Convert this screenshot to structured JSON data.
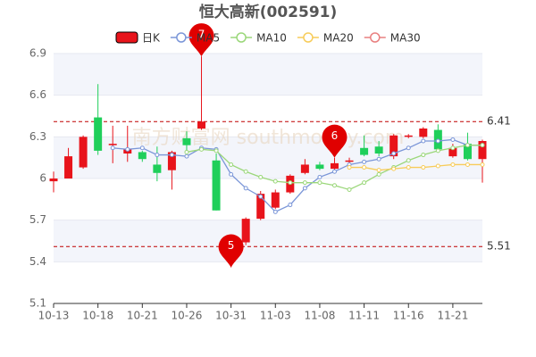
{
  "chart_data": {
    "type": "candlestick",
    "title": "恒大高新(002591)",
    "watermark": "南方财富网 southmoney.com",
    "categories": [
      "10-13",
      null,
      null,
      "10-18",
      null,
      null,
      "10-21",
      null,
      null,
      "10-26",
      null,
      null,
      "10-31",
      null,
      null,
      "11-03",
      null,
      null,
      "11-08",
      null,
      null,
      "11-11",
      null,
      null,
      "11-16",
      null,
      null,
      "11-21",
      null,
      null
    ],
    "candles": {
      "name": "日K",
      "up_color": "#e8141b",
      "down_color": "#1fcf5a",
      "open": [
        5.98,
        6.0,
        6.08,
        6.44,
        6.24,
        6.18,
        6.19,
        6.1,
        6.06,
        6.29,
        6.36,
        6.13,
        5.45,
        5.54,
        5.71,
        5.79,
        5.9,
        6.04,
        6.1,
        6.07,
        6.12,
        6.22,
        6.23,
        6.16,
        6.3,
        6.3,
        6.35,
        6.16,
        6.25,
        6.14
      ],
      "high": [
        6.05,
        6.22,
        6.31,
        6.68,
        6.38,
        6.38,
        6.2,
        6.23,
        6.2,
        6.34,
        6.88,
        6.18,
        5.57,
        5.72,
        5.91,
        5.92,
        6.03,
        6.14,
        6.12,
        6.15,
        6.15,
        6.31,
        6.27,
        6.32,
        6.32,
        6.37,
        6.39,
        6.25,
        6.33,
        6.28
      ],
      "low": [
        5.9,
        6.0,
        6.07,
        6.17,
        6.11,
        6.12,
        6.12,
        5.98,
        5.92,
        6.18,
        6.35,
        5.77,
        5.36,
        5.52,
        5.7,
        5.78,
        5.89,
        6.03,
        6.06,
        6.06,
        6.1,
        6.16,
        6.16,
        6.14,
        6.29,
        6.29,
        6.2,
        6.15,
        6.13,
        5.97
      ],
      "close": [
        6.0,
        6.16,
        6.3,
        6.2,
        6.25,
        6.21,
        6.14,
        6.04,
        6.19,
        6.24,
        6.41,
        5.77,
        5.55,
        5.71,
        5.89,
        5.9,
        6.02,
        6.1,
        6.07,
        6.11,
        6.13,
        6.17,
        6.18,
        6.31,
        6.31,
        6.36,
        6.21,
        6.22,
        6.14,
        6.27
      ]
    },
    "series": [
      {
        "name": "MA5",
        "color": "#7b96d8",
        "values": [
          null,
          null,
          null,
          null,
          6.22,
          6.21,
          6.22,
          6.17,
          6.17,
          6.16,
          6.22,
          6.21,
          6.03,
          5.93,
          5.87,
          5.76,
          5.81,
          5.93,
          6.01,
          6.05,
          6.1,
          6.12,
          6.14,
          6.18,
          6.22,
          6.27,
          6.27,
          6.28,
          6.24,
          6.24
        ]
      },
      {
        "name": "MA10",
        "color": "#9bd77a",
        "values": [
          null,
          null,
          null,
          null,
          null,
          null,
          null,
          null,
          null,
          6.19,
          6.21,
          6.2,
          6.1,
          6.05,
          6.01,
          5.98,
          5.97,
          5.97,
          5.97,
          5.95,
          5.92,
          5.97,
          6.03,
          6.08,
          6.13,
          6.17,
          6.2,
          6.22,
          6.24,
          6.24
        ]
      },
      {
        "name": "MA20",
        "color": "#f7cc5a",
        "values": [
          null,
          null,
          null,
          null,
          null,
          null,
          null,
          null,
          null,
          null,
          null,
          null,
          null,
          null,
          null,
          null,
          null,
          null,
          null,
          null,
          6.08,
          6.08,
          6.06,
          6.07,
          6.08,
          6.08,
          6.09,
          6.1,
          6.1,
          6.1
        ]
      },
      {
        "name": "MA30",
        "color": "#e98080",
        "values": [
          null,
          null,
          null,
          null,
          null,
          null,
          null,
          null,
          null,
          null,
          null,
          null,
          null,
          null,
          null,
          null,
          null,
          null,
          null,
          null,
          null,
          null,
          null,
          null,
          null,
          null,
          null,
          null,
          null,
          null
        ]
      }
    ],
    "reference_lines": [
      {
        "value": 6.41,
        "label": "6.41",
        "color": "#c00000"
      },
      {
        "value": 5.51,
        "label": "5.51",
        "color": "#c00000"
      }
    ],
    "annotations": [
      {
        "label": "7",
        "value": 6.88
      },
      {
        "label": "5",
        "value": 5.36
      },
      {
        "label": "6",
        "value": 6.15
      }
    ],
    "annotation_color": "#e00000",
    "ylim": [
      5.1,
      6.9
    ],
    "yticks": [
      5.1,
      5.4,
      5.7,
      6,
      6.3,
      6.6,
      6.9
    ],
    "grid": true
  }
}
